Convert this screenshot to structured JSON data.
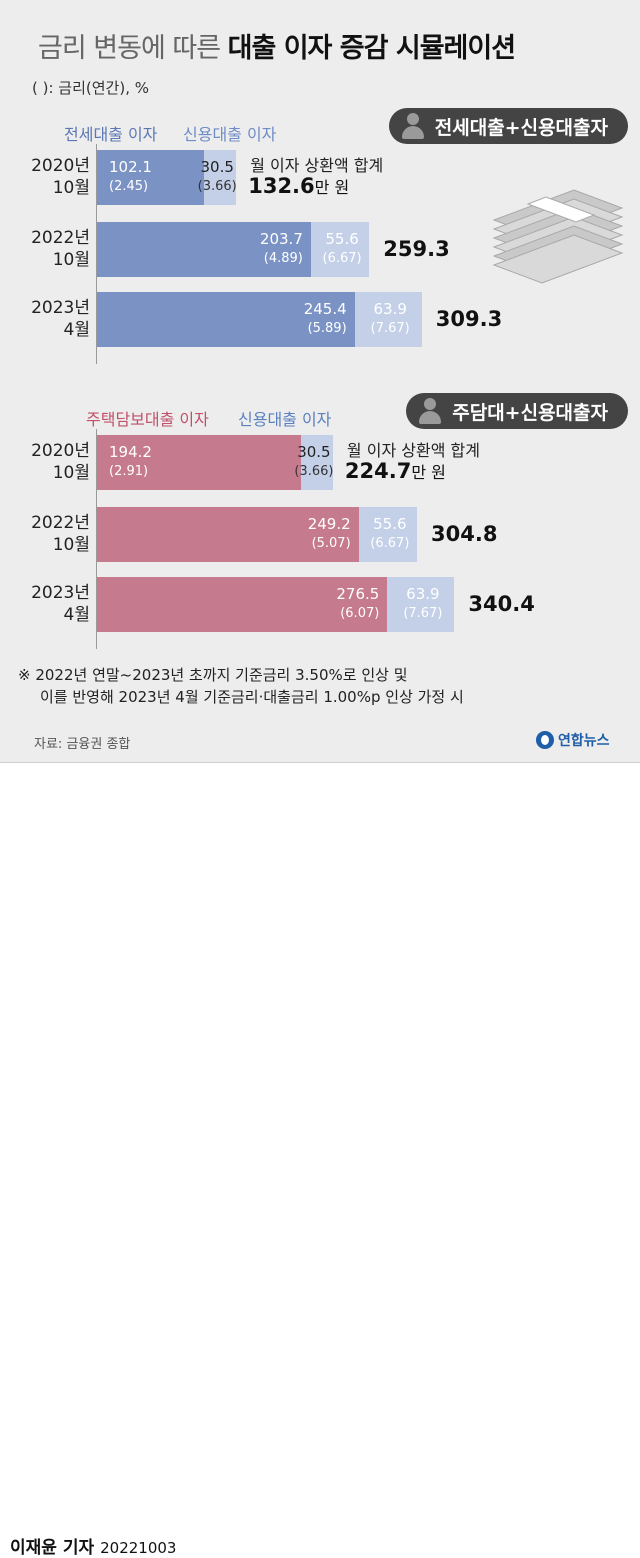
{
  "header": {
    "title_light": "금리 변동에 따른",
    "title_bold": "대출 이자 증감 시뮬레이션",
    "unit_note": "( ): 금리(연간), %"
  },
  "colors": {
    "chart1_base": "#7b93c4",
    "chart1_credit": "#c3d0e8",
    "chart1_legend_base": "#5b78b5",
    "chart1_legend_credit": "#6e8cc6",
    "chart2_base": "#c67a8d",
    "chart2_credit": "#c3d0e8",
    "chart2_legend_base": "#c0506b",
    "chart2_legend_credit": "#5b80c0"
  },
  "chart_data": [
    {
      "type": "bar",
      "stacked": true,
      "orientation": "horizontal",
      "title": "전세대출+신용대출자",
      "categories": [
        "2020년\n10월",
        "2022년\n10월",
        "2023년\n4월"
      ],
      "series": [
        {
          "name": "전세대출 이자",
          "values": [
            102.1,
            203.7,
            245.4
          ],
          "rates": [
            "(2.45)",
            "(4.89)",
            "(5.89)"
          ]
        },
        {
          "name": "신용대출 이자",
          "values": [
            30.5,
            55.6,
            63.9
          ],
          "rates": [
            "(3.66)",
            "(6.67)",
            "(7.67)"
          ]
        }
      ],
      "totals": [
        "132.6",
        "259.3",
        "309.3"
      ],
      "total_caption": "월 이자 상환액 합계",
      "total_unit": "만 원"
    },
    {
      "type": "bar",
      "stacked": true,
      "orientation": "horizontal",
      "title": "주담대+신용대출자",
      "categories": [
        "2020년\n10월",
        "2022년\n10월",
        "2023년\n4월"
      ],
      "series": [
        {
          "name": "주택담보대출 이자",
          "values": [
            194.2,
            249.2,
            276.5
          ],
          "rates": [
            "(2.91)",
            "(5.07)",
            "(6.07)"
          ]
        },
        {
          "name": "신용대출 이자",
          "values": [
            30.5,
            55.6,
            63.9
          ],
          "rates": [
            "(3.66)",
            "(6.67)",
            "(7.67)"
          ]
        }
      ],
      "totals": [
        "224.7",
        "304.8",
        "340.4"
      ],
      "total_caption": "월 이자 상환액 합계",
      "total_unit": "만 원"
    }
  ],
  "notes": {
    "line1": "※ 2022년 연말~2023년 초까지 기준금리 3.50%로 인상 및",
    "line2": "이를 반영해 2023년 4월 기준금리·대출금리 1.00%p 인상 가정 시",
    "source": "자료: 금융권 종합"
  },
  "logo_text": "연합뉴스",
  "byline": {
    "reporter": "이재윤 기자",
    "date": "20221003"
  }
}
